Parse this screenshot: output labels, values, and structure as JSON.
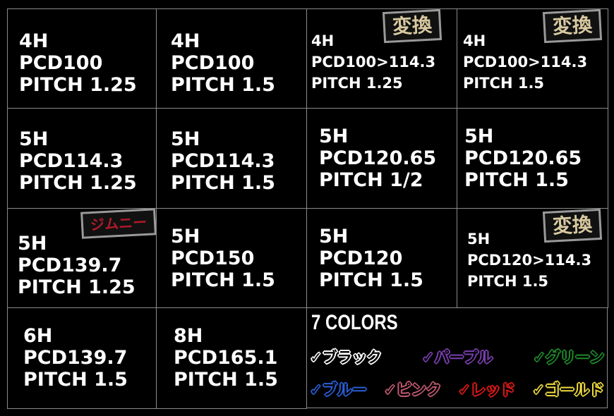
{
  "cells": [
    {
      "lines": [
        "4H",
        "PCD100",
        "PITCH 1.25"
      ]
    },
    {
      "lines": [
        "4H",
        "PCD100",
        "PITCH 1.5"
      ]
    },
    {
      "lines": [
        "4H",
        "PCD100>114.3",
        "PITCH 1.25"
      ],
      "badge": "変換"
    },
    {
      "lines": [
        "4H",
        "PCD100>114.3",
        "PITCH 1.5"
      ],
      "badge": "変換"
    },
    {
      "lines": [
        "5H",
        "PCD114.3",
        "PITCH 1.25"
      ]
    },
    {
      "lines": [
        "5H",
        "PCD114.3",
        "PITCH 1.5"
      ]
    },
    {
      "lines": [
        "5H",
        "PCD120.65",
        "PITCH 1/2"
      ]
    },
    {
      "lines": [
        "5H",
        "PCD120.65",
        "PITCH 1.5"
      ]
    },
    {
      "lines": [
        "5H",
        "PCD139.7",
        "PITCH 1.25"
      ],
      "badge": "ジムニー"
    },
    {
      "lines": [
        "5H",
        "PCD150",
        "PITCH 1.5"
      ]
    },
    {
      "lines": [
        "5H",
        "PCD120",
        "PITCH 1.5"
      ]
    },
    {
      "lines": [
        "5H",
        "PCD120>114.3",
        "PITCH 1.5"
      ],
      "badge": "変換"
    },
    {
      "lines": [
        "6H",
        "PCD139.7",
        "PITCH 1.5"
      ]
    },
    {
      "lines": [
        "8H",
        "PCD165.1",
        "PITCH 1.5"
      ]
    }
  ],
  "colors": {
    "title": "7 COLORS",
    "items": [
      {
        "label": "✓ブラック",
        "color": "#ffffff"
      },
      {
        "label": "✓パープル",
        "color": "#7a3fb0"
      },
      {
        "label": "✓グリーン",
        "color": "#1f8a2a"
      },
      {
        "label": "✓ブルー",
        "color": "#2a5fd8"
      },
      {
        "label": "✓ピンク",
        "color": "#c05a70"
      },
      {
        "label": "✓レッド",
        "color": "#e01818"
      },
      {
        "label": "✓ゴールド",
        "color": "#f0dc40"
      }
    ]
  }
}
